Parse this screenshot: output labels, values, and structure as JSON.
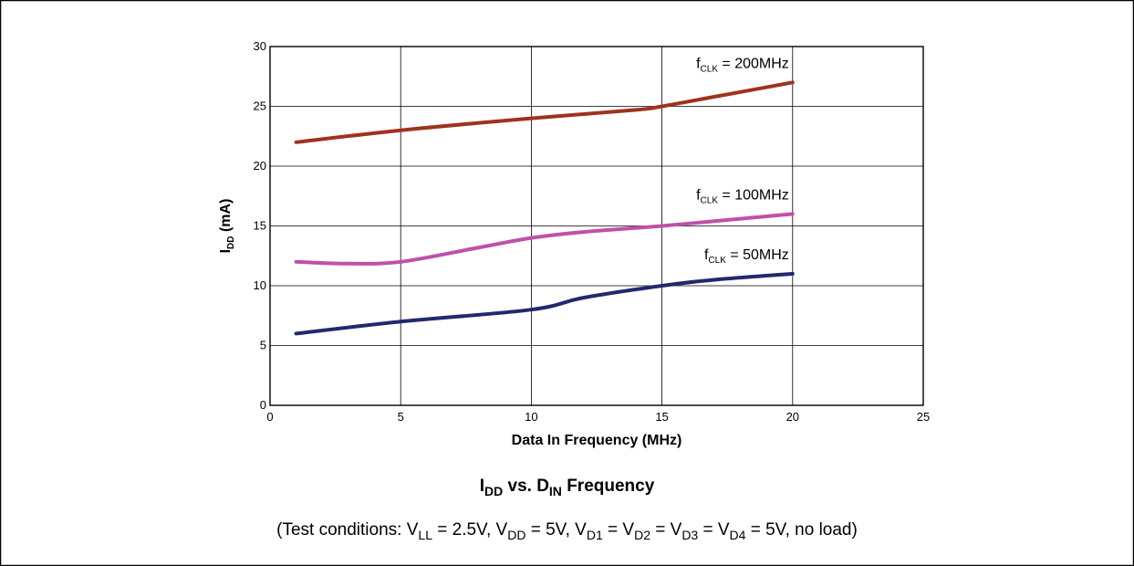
{
  "chart_data": {
    "type": "line",
    "xlabel": "Data In Frequency (MHz)",
    "ylabel": "I",
    "ylabel_sub": "DD",
    "ylabel_unit": " (mA)",
    "xlim": [
      0,
      25
    ],
    "ylim": [
      0,
      30
    ],
    "xticks": [
      0,
      5,
      10,
      15,
      20,
      25
    ],
    "yticks": [
      0,
      5,
      10,
      15,
      20,
      25,
      30
    ],
    "grid": true,
    "series": [
      {
        "name": "fCLK = 200MHz",
        "label_main": "f",
        "label_sub": "CLK",
        "label_rest": " = 200MHz",
        "color": "#a0321e",
        "x": [
          1,
          5,
          10,
          14,
          15,
          17,
          20
        ],
        "y": [
          22,
          23,
          24,
          24.7,
          25,
          25.8,
          27
        ]
      },
      {
        "name": "fCLK = 100MHz",
        "label_main": "f",
        "label_sub": "CLK",
        "label_rest": " = 100MHz",
        "color": "#c050a8",
        "x": [
          1,
          3,
          5,
          8,
          10,
          12,
          15,
          17,
          20
        ],
        "y": [
          12,
          11.85,
          12,
          13.2,
          14,
          14.5,
          15,
          15.4,
          16
        ]
      },
      {
        "name": "fCLK = 50MHz",
        "label_main": "f",
        "label_sub": "CLK",
        "label_rest": " = 50MHz",
        "color": "#23286e",
        "x": [
          1,
          5,
          10,
          12,
          15,
          17,
          20
        ],
        "y": [
          6,
          7,
          8,
          9,
          10,
          10.5,
          11
        ]
      }
    ]
  },
  "caption": {
    "title_i": "I",
    "title_i_sub": "DD",
    "title_mid": " vs. D",
    "title_d_sub": "IN",
    "title_end": " Frequency",
    "cond_1": "(Test conditions: V",
    "cond_1_sub": "LL",
    "cond_2": " = 2.5V, V",
    "cond_2_sub": "DD",
    "cond_3": " = 5V, V",
    "cond_3_sub": "D1",
    "cond_4": " = V",
    "cond_4_sub": "D2",
    "cond_5": " = V",
    "cond_5_sub": "D3",
    "cond_6": " = V",
    "cond_6_sub": "D4",
    "cond_7": " = 5V, no load)"
  }
}
